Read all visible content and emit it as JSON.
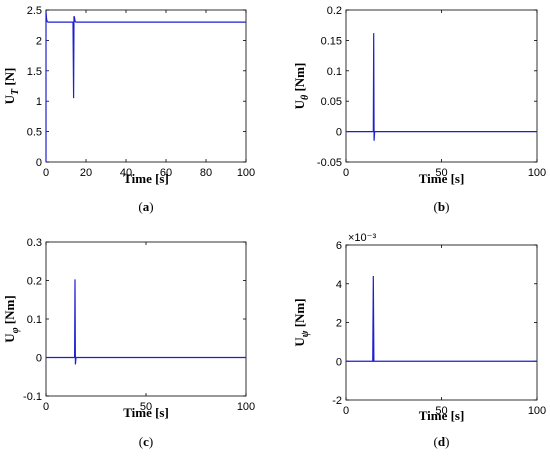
{
  "chart_data": [
    {
      "type": "line",
      "caption": "a",
      "ylabel_main": "U",
      "ylabel_sub": "T",
      "ylabel_unit": " [N]",
      "xlabel": "Time [s]",
      "xlim": [
        0,
        100
      ],
      "ylim": [
        0,
        2.5
      ],
      "xticks": [
        "0",
        "20",
        "40",
        "60",
        "80",
        "100"
      ],
      "yticks": [
        "0",
        "0.5",
        "1",
        "1.5",
        "2",
        "2.5"
      ],
      "exponent": "",
      "color": "#1f1fd0",
      "series": [
        {
          "x": [
            0,
            0,
            0.3,
            0.6,
            1,
            2,
            13.5,
            13.8,
            14.0,
            14.2,
            14.6,
            15,
            100
          ],
          "y": [
            0,
            2.48,
            2.35,
            2.31,
            2.3,
            2.3,
            2.3,
            1.05,
            2.4,
            2.38,
            2.31,
            2.3,
            2.3
          ]
        }
      ]
    },
    {
      "type": "line",
      "caption": "b",
      "ylabel_main": "U",
      "ylabel_sub": "θ",
      "ylabel_unit": " [Nm]",
      "xlabel": "Time [s]",
      "xlim": [
        0,
        100
      ],
      "ylim": [
        -0.05,
        0.2
      ],
      "xticks": [
        "0",
        "50",
        "100"
      ],
      "yticks": [
        "-0.05",
        "0",
        "0.05",
        "0.1",
        "0.15",
        "0.2"
      ],
      "exponent": "",
      "color": "#1f1fd0",
      "series": [
        {
          "x": [
            0,
            14.3,
            14.5,
            14.7,
            15,
            100
          ],
          "y": [
            0,
            0,
            0.162,
            -0.015,
            0,
            0
          ]
        }
      ]
    },
    {
      "type": "line",
      "caption": "c",
      "ylabel_main": "U",
      "ylabel_sub": "φ",
      "ylabel_unit": " [Nm]",
      "xlabel": "Time [s]",
      "xlim": [
        0,
        100
      ],
      "ylim": [
        -0.1,
        0.3
      ],
      "xticks": [
        "0",
        "50",
        "100"
      ],
      "yticks": [
        "-0.1",
        "0",
        "0.1",
        "0.2",
        "0.3"
      ],
      "exponent": "",
      "color": "#1f1fd0",
      "series": [
        {
          "x": [
            0,
            14.3,
            14.5,
            14.7,
            15,
            100
          ],
          "y": [
            0,
            0,
            0.203,
            -0.018,
            0,
            0
          ]
        }
      ]
    },
    {
      "type": "line",
      "caption": "d",
      "ylabel_main": "U",
      "ylabel_sub": "ψ",
      "ylabel_unit": " [Nm]",
      "xlabel": "Time [s]",
      "xlim": [
        0,
        100
      ],
      "ylim": [
        -2,
        6
      ],
      "xticks": [
        "0",
        "50",
        "100"
      ],
      "yticks": [
        "-2",
        "0",
        "2",
        "4",
        "6"
      ],
      "exponent": "×10⁻³",
      "color": "#1f1fd0",
      "series": [
        {
          "x": [
            0,
            14.0,
            14.3,
            14.6,
            100
          ],
          "y": [
            0,
            0,
            4.4,
            0,
            0
          ]
        }
      ]
    }
  ]
}
